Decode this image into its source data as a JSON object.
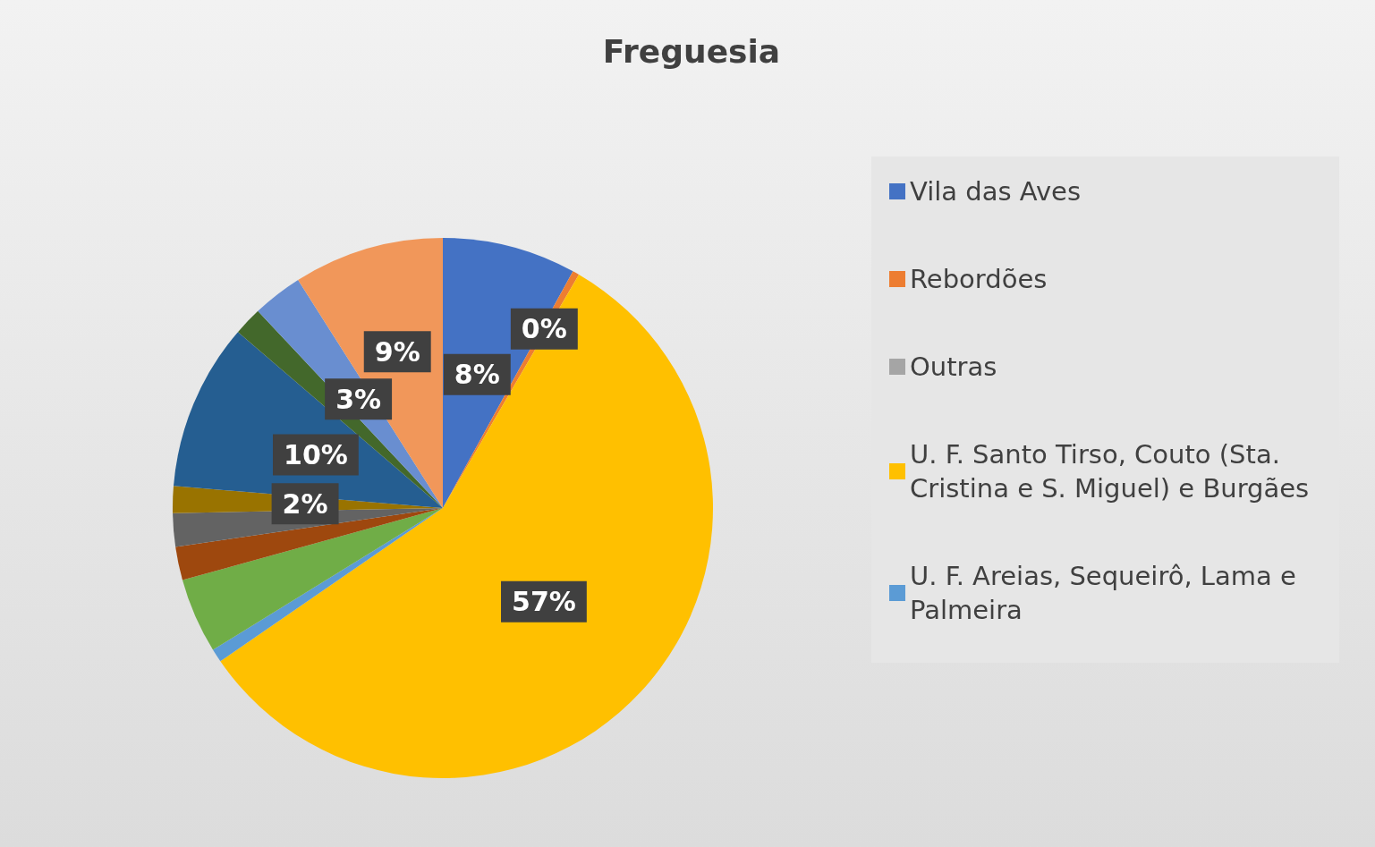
{
  "chart_data": {
    "type": "pie",
    "title": "Freguesia",
    "categories": [
      "Vila das Aves",
      "Rebordões",
      "Outras",
      "U. F. Santo Tirso, Couto (Sta. Cristina e S. Miguel) e Burgães",
      "U. F. Areias, Sequeirô, Lama e Palmeira",
      null,
      null,
      null,
      null,
      null,
      null,
      null,
      null
    ],
    "values": [
      8,
      0.4,
      0,
      57,
      0.8,
      4.5,
      2,
      2,
      1.6,
      10,
      1.7,
      3,
      9
    ],
    "colors": [
      "#4472c4",
      "#ed7d31",
      "#a5a5a5",
      "#ffc000",
      "#5b9bd5",
      "#70ad47",
      "#9e480e",
      "#636363",
      "#997300",
      "#255e91",
      "#43682b",
      "#698ed0",
      "#f1975a"
    ],
    "value_labels": [
      "8%",
      "0%",
      null,
      "57%",
      null,
      null,
      null,
      null,
      "2%",
      "10%",
      null,
      "3%",
      "9%"
    ],
    "legend": "right"
  }
}
